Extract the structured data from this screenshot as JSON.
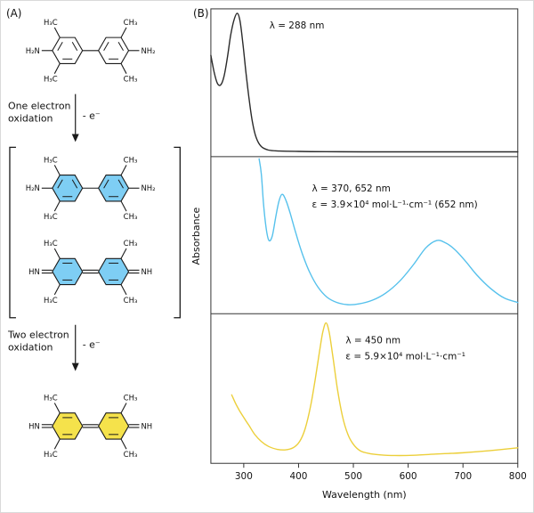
{
  "figure": {
    "panelA_label": "(A)",
    "panelB_label": "(B)"
  },
  "panelA": {
    "atom_labels": {
      "amine_left": "H₂N",
      "amine_right": "NH₂",
      "imine_left": "HN",
      "imine_right": "NH",
      "methyl_left": "H₃C",
      "methyl_right": "CH₃"
    },
    "steps": [
      {
        "line1": "One electron",
        "line2": "oxidation",
        "arrow_label": "- e⁻"
      },
      {
        "line1": "Two electron",
        "line2": "oxidation",
        "arrow_label": "- e⁻"
      }
    ],
    "colors": {
      "neutral_ring_fill": "none",
      "radical_ring_fill": "#7ecef4",
      "diimine_ring_fill": "#f5e24b",
      "bond": "#1a1a1a"
    }
  },
  "panelB": {
    "ylabel": "Absorbance",
    "xlabel": "Wavelength (nm)"
  },
  "chart_data": {
    "type": "line",
    "xlabel": "Wavelength (nm)",
    "ylabel": "Absorbance",
    "xlim": [
      240,
      800
    ],
    "x_ticks": [
      300,
      400,
      500,
      600,
      700,
      800
    ],
    "grid": false,
    "y_normalized": true,
    "panels": [
      {
        "color": "#2a2a2a",
        "annotation": [
          "λ = 288 nm"
        ],
        "peaks_nm": [
          288
        ],
        "x": [
          240,
          246,
          252,
          258,
          264,
          270,
          276,
          282,
          288,
          293,
          298,
          304,
          310,
          316,
          323,
          332,
          345,
          365,
          400,
          450,
          520,
          600,
          700,
          800
        ],
        "y": [
          0.7,
          0.58,
          0.5,
          0.49,
          0.55,
          0.68,
          0.84,
          0.95,
          1.0,
          0.95,
          0.8,
          0.58,
          0.38,
          0.22,
          0.11,
          0.05,
          0.025,
          0.018,
          0.015,
          0.013,
          0.012,
          0.012,
          0.012,
          0.012
        ]
      },
      {
        "color": "#56c1ec",
        "annotation": [
          "λ = 370, 652 nm",
          "ε = 3.9×10⁴ mol·L⁻¹·cm⁻¹ (652 nm)"
        ],
        "peaks_nm": [
          370,
          652
        ],
        "x": [
          328,
          332,
          336,
          341,
          346,
          352,
          358,
          364,
          370,
          377,
          385,
          395,
          407,
          420,
          435,
          452,
          470,
          490,
          510,
          535,
          560,
          585,
          610,
          632,
          652,
          668,
          685,
          705,
          725,
          750,
          775,
          800
        ],
        "y": [
          1.08,
          0.92,
          0.72,
          0.55,
          0.47,
          0.5,
          0.62,
          0.73,
          0.78,
          0.74,
          0.65,
          0.52,
          0.38,
          0.26,
          0.16,
          0.09,
          0.055,
          0.04,
          0.045,
          0.07,
          0.12,
          0.2,
          0.31,
          0.42,
          0.47,
          0.455,
          0.41,
          0.33,
          0.24,
          0.15,
          0.085,
          0.055
        ]
      },
      {
        "color": "#eccf3a",
        "annotation": [
          "λ = 450 nm",
          "ε = 5.9×10⁴ mol·L⁻¹·cm⁻¹"
        ],
        "peaks_nm": [
          450
        ],
        "x": [
          278,
          285,
          292,
          300,
          310,
          320,
          332,
          345,
          360,
          375,
          390,
          402,
          412,
          422,
          430,
          438,
          444,
          450,
          456,
          463,
          471,
          480,
          490,
          500,
          512,
          528,
          548,
          575,
          610,
          650,
          700,
          750,
          800
        ],
        "y": [
          0.46,
          0.4,
          0.35,
          0.3,
          0.24,
          0.18,
          0.13,
          0.095,
          0.075,
          0.07,
          0.085,
          0.13,
          0.22,
          0.38,
          0.56,
          0.76,
          0.9,
          0.97,
          0.9,
          0.72,
          0.5,
          0.31,
          0.18,
          0.11,
          0.065,
          0.045,
          0.035,
          0.03,
          0.032,
          0.04,
          0.05,
          0.065,
          0.085
        ]
      }
    ]
  }
}
